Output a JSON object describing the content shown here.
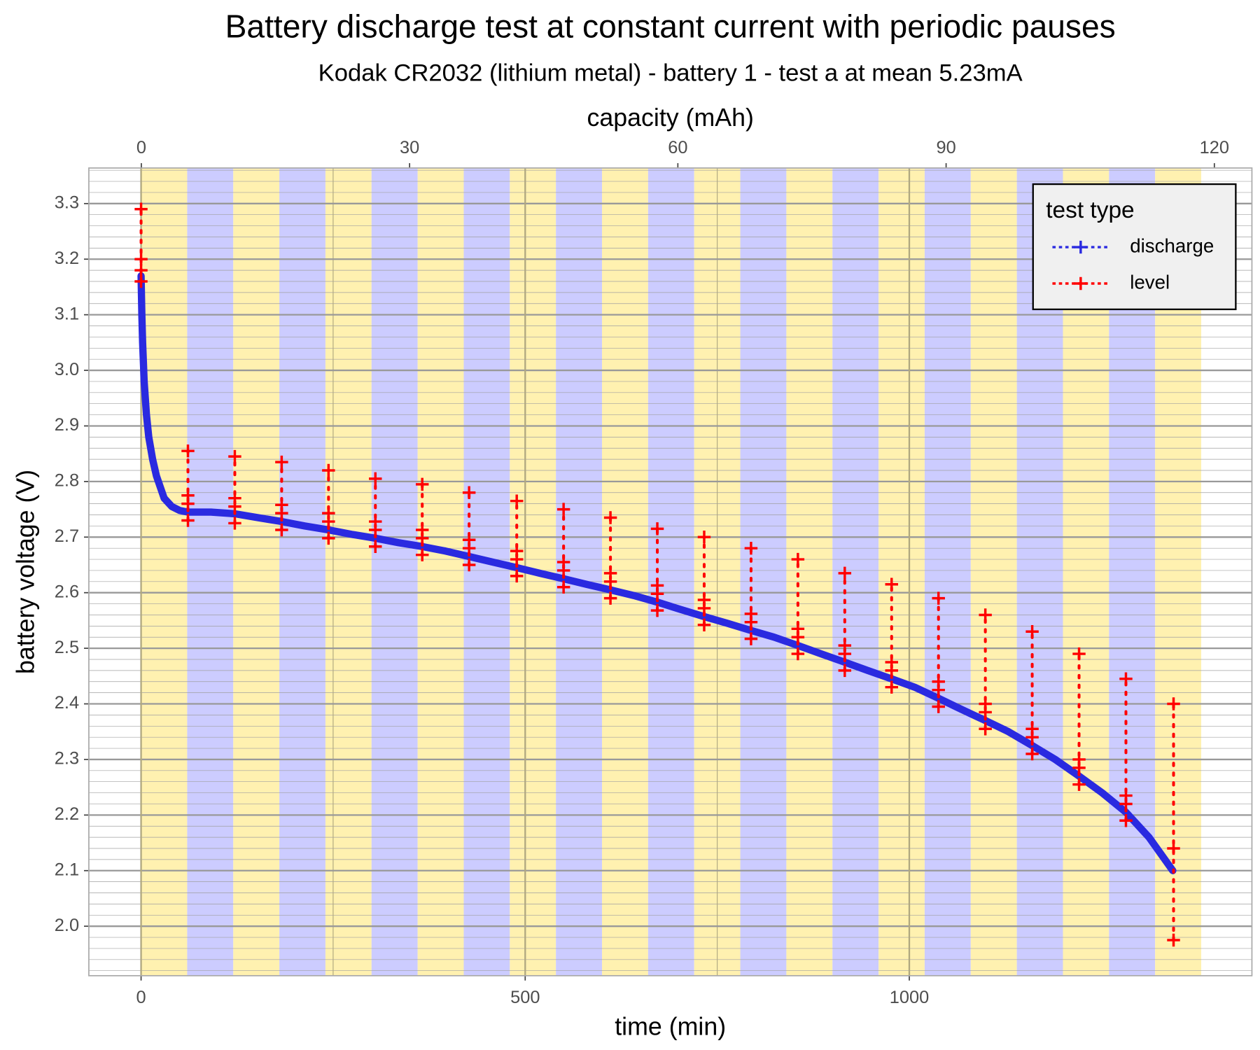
{
  "chart_data": {
    "type": "line",
    "title": "Battery discharge test at constant current with periodic pauses",
    "subtitle": "Kodak CR2032 (lithium metal) - battery 1 - test a at mean 5.23mA",
    "xlabel": "time (min)",
    "ylabel": "battery voltage (V)",
    "x2label": "capacity (mAh)",
    "xlim": [
      -68,
      1446
    ],
    "xticks": [
      0,
      500,
      1000
    ],
    "x_minor_grid": [
      250,
      750
    ],
    "x2lim": [
      -5.87,
      124.2
    ],
    "x2ticks": [
      0,
      30,
      60,
      90,
      120
    ],
    "ylim": [
      1.911,
      3.364
    ],
    "yticks": [
      {
        "value": 2,
        "label": "2.0"
      },
      2.1,
      2.2,
      2.3,
      2.4,
      2.5,
      2.6,
      2.7,
      2.8,
      2.9,
      {
        "value": 3,
        "label": "3.0"
      },
      3.1,
      3.2,
      3.3
    ],
    "y_minor_step": 0.02,
    "grid": true,
    "band_edges": [
      0,
      60,
      120,
      180,
      240,
      300,
      360,
      420,
      480,
      540,
      600,
      660,
      720,
      780,
      840,
      900,
      960,
      1020,
      1080,
      1140,
      1200,
      1260,
      1320,
      1380
    ],
    "band_colors": [
      "#fff1b0",
      "#ccccff"
    ],
    "legend_title": "test type",
    "legend_position": "top-right",
    "series": [
      {
        "name": "discharge",
        "color": "#2a2ae0",
        "x": [
          0,
          1,
          2,
          4,
          7,
          10,
          15,
          20,
          30,
          40,
          50,
          61,
          91,
          122,
          152,
          183,
          213,
          244,
          274,
          305,
          335,
          366,
          396,
          427,
          458,
          489,
          519,
          550,
          580,
          611,
          641,
          672,
          702,
          733,
          763,
          794,
          824,
          855,
          885,
          916,
          946,
          977,
          1007,
          1038,
          1068,
          1099,
          1129,
          1160,
          1190,
          1221,
          1251,
          1282,
          1312,
          1343
        ],
        "values": [
          3.17,
          3.1,
          3.05,
          2.98,
          2.92,
          2.88,
          2.84,
          2.81,
          2.77,
          2.755,
          2.748,
          2.745,
          2.745,
          2.742,
          2.735,
          2.728,
          2.72,
          2.713,
          2.705,
          2.698,
          2.69,
          2.683,
          2.675,
          2.665,
          2.655,
          2.645,
          2.635,
          2.625,
          2.615,
          2.605,
          2.595,
          2.583,
          2.57,
          2.557,
          2.545,
          2.532,
          2.52,
          2.505,
          2.49,
          2.475,
          2.46,
          2.445,
          2.43,
          2.41,
          2.39,
          2.37,
          2.35,
          2.325,
          2.3,
          2.27,
          2.24,
          2.205,
          2.16,
          2.1
        ]
      },
      {
        "name": "level",
        "color": "#ff0000",
        "x": [
          0,
          0,
          0,
          0,
          null,
          61,
          61,
          61,
          61,
          null,
          122,
          122,
          122,
          122,
          null,
          183,
          183,
          183,
          183,
          null,
          244,
          244,
          244,
          244,
          null,
          305,
          305,
          305,
          305,
          null,
          366,
          366,
          366,
          366,
          null,
          427,
          427,
          427,
          427,
          null,
          489,
          489,
          489,
          489,
          null,
          550,
          550,
          550,
          550,
          null,
          611,
          611,
          611,
          611,
          null,
          672,
          672,
          672,
          672,
          null,
          733,
          733,
          733,
          733,
          null,
          794,
          794,
          794,
          794,
          null,
          855,
          855,
          855,
          855,
          null,
          916,
          916,
          916,
          916,
          null,
          977,
          977,
          977,
          977,
          null,
          1038,
          1038,
          1038,
          1038,
          null,
          1099,
          1099,
          1099,
          1099,
          null,
          1160,
          1160,
          1160,
          1160,
          null,
          1221,
          1221,
          1221,
          1221,
          null,
          1282,
          1282,
          1282,
          1282,
          null,
          1344,
          1344,
          1344
        ],
        "values": [
          3.16,
          3.18,
          3.2,
          3.29,
          null,
          2.73,
          2.76,
          2.775,
          2.855,
          null,
          2.725,
          2.755,
          2.77,
          2.845,
          null,
          2.713,
          2.743,
          2.758,
          2.835,
          null,
          2.698,
          2.728,
          2.743,
          2.82,
          null,
          2.683,
          2.713,
          2.728,
          2.805,
          null,
          2.668,
          2.698,
          2.713,
          2.795,
          null,
          2.65,
          2.68,
          2.695,
          2.78,
          null,
          2.63,
          2.66,
          2.675,
          2.765,
          null,
          2.61,
          2.64,
          2.655,
          2.75,
          null,
          2.59,
          2.62,
          2.635,
          2.735,
          null,
          2.568,
          2.598,
          2.613,
          2.715,
          null,
          2.542,
          2.572,
          2.587,
          2.7,
          null,
          2.517,
          2.547,
          2.562,
          2.68,
          null,
          2.49,
          2.52,
          2.535,
          2.66,
          null,
          2.46,
          2.49,
          2.505,
          2.635,
          null,
          2.43,
          2.46,
          2.475,
          2.615,
          null,
          2.395,
          2.425,
          2.44,
          2.59,
          null,
          2.355,
          2.385,
          2.4,
          2.56,
          null,
          2.31,
          2.34,
          2.355,
          2.53,
          null,
          2.255,
          2.285,
          2.3,
          2.49,
          null,
          2.19,
          2.22,
          2.235,
          2.445,
          null,
          1.975,
          2.14,
          2.4
        ]
      }
    ]
  }
}
